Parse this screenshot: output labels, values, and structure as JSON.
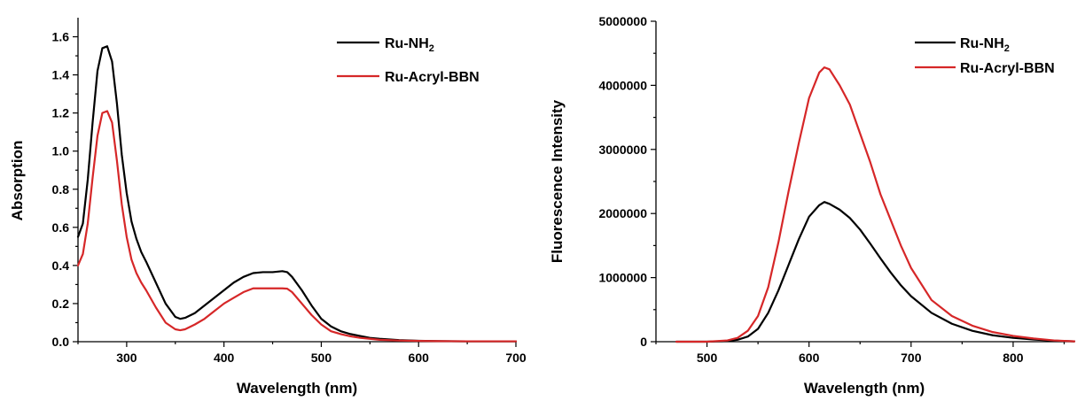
{
  "chart_data": [
    {
      "type": "line",
      "xlabel": "Wavelength (nm)",
      "ylabel": "Absorption",
      "xlim": [
        250,
        700
      ],
      "ylim": [
        0,
        1.7
      ],
      "xticks": [
        300,
        400,
        500,
        600,
        700
      ],
      "yticks": [
        0.0,
        0.2,
        0.4,
        0.6,
        0.8,
        1.0,
        1.2,
        1.4,
        1.6
      ],
      "ytick_labels": [
        "0.0",
        "0.2",
        "0.4",
        "0.6",
        "0.8",
        "1.0",
        "1.2",
        "1.4",
        "1.6"
      ],
      "legend_placement": "top-right",
      "grid": false,
      "series": [
        {
          "name": "Ru-NH",
          "name_subscript": "2",
          "color": "#000000",
          "x": [
            250,
            255,
            260,
            265,
            270,
            275,
            280,
            285,
            290,
            295,
            300,
            305,
            310,
            315,
            320,
            330,
            340,
            350,
            355,
            360,
            370,
            380,
            390,
            400,
            410,
            420,
            430,
            440,
            450,
            460,
            465,
            470,
            480,
            490,
            500,
            510,
            520,
            530,
            540,
            550,
            560,
            580,
            600,
            620,
            650,
            700
          ],
          "y": [
            0.55,
            0.62,
            0.85,
            1.15,
            1.42,
            1.54,
            1.55,
            1.47,
            1.25,
            0.98,
            0.78,
            0.63,
            0.54,
            0.47,
            0.42,
            0.31,
            0.2,
            0.13,
            0.12,
            0.125,
            0.15,
            0.19,
            0.23,
            0.27,
            0.31,
            0.34,
            0.36,
            0.365,
            0.365,
            0.37,
            0.365,
            0.34,
            0.27,
            0.19,
            0.12,
            0.08,
            0.055,
            0.04,
            0.03,
            0.02,
            0.015,
            0.008,
            0.005,
            0.003,
            0.002,
            0.002
          ]
        },
        {
          "name": "Ru-Acryl-BBN",
          "color": "#d62728",
          "x": [
            250,
            255,
            260,
            265,
            270,
            275,
            280,
            285,
            290,
            295,
            300,
            305,
            310,
            315,
            320,
            330,
            340,
            350,
            355,
            360,
            370,
            380,
            390,
            400,
            410,
            420,
            430,
            440,
            450,
            460,
            465,
            470,
            480,
            490,
            500,
            510,
            520,
            530,
            540,
            550,
            560,
            580,
            600,
            620,
            650,
            700
          ],
          "y": [
            0.4,
            0.46,
            0.62,
            0.86,
            1.08,
            1.2,
            1.21,
            1.15,
            0.95,
            0.72,
            0.55,
            0.43,
            0.36,
            0.31,
            0.27,
            0.18,
            0.1,
            0.065,
            0.06,
            0.065,
            0.09,
            0.12,
            0.16,
            0.2,
            0.23,
            0.26,
            0.28,
            0.28,
            0.28,
            0.28,
            0.278,
            0.26,
            0.2,
            0.14,
            0.09,
            0.055,
            0.04,
            0.028,
            0.02,
            0.015,
            0.01,
            0.006,
            0.004,
            0.003,
            0.002,
            0.002
          ]
        }
      ]
    },
    {
      "type": "line",
      "xlabel": "Wavelength (nm)",
      "ylabel": "Fluorescence Intensity",
      "xlim": [
        450,
        860
      ],
      "ylim": [
        0,
        5000000
      ],
      "xticks": [
        500,
        600,
        700,
        800
      ],
      "yticks": [
        0,
        1000000,
        2000000,
        3000000,
        4000000,
        5000000
      ],
      "ytick_labels": [
        "0",
        "1000000",
        "2000000",
        "3000000",
        "4000000",
        "5000000"
      ],
      "legend_placement": "top-right",
      "grid": false,
      "series": [
        {
          "name": "Ru-NH",
          "name_subscript": "2",
          "color": "#000000",
          "x": [
            470,
            500,
            520,
            530,
            540,
            550,
            560,
            570,
            580,
            590,
            600,
            610,
            615,
            620,
            630,
            640,
            650,
            660,
            670,
            680,
            690,
            700,
            720,
            740,
            760,
            780,
            800,
            820,
            840,
            860
          ],
          "y": [
            0,
            0,
            10000,
            30000,
            80000,
            200000,
            450000,
            800000,
            1200000,
            1600000,
            1950000,
            2130000,
            2180000,
            2150000,
            2060000,
            1930000,
            1750000,
            1530000,
            1300000,
            1080000,
            880000,
            710000,
            450000,
            280000,
            170000,
            100000,
            60000,
            35000,
            15000,
            5000
          ]
        },
        {
          "name": "Ru-Acryl-BBN",
          "color": "#d62728",
          "x": [
            470,
            500,
            520,
            530,
            540,
            550,
            560,
            570,
            580,
            590,
            600,
            610,
            615,
            620,
            630,
            640,
            650,
            660,
            670,
            680,
            690,
            700,
            720,
            740,
            760,
            780,
            800,
            820,
            840,
            860
          ],
          "y": [
            0,
            0,
            20000,
            60000,
            170000,
            400000,
            850000,
            1550000,
            2350000,
            3100000,
            3800000,
            4200000,
            4280000,
            4250000,
            4000000,
            3700000,
            3250000,
            2800000,
            2300000,
            1900000,
            1500000,
            1150000,
            650000,
            400000,
            250000,
            150000,
            90000,
            50000,
            20000,
            5000
          ]
        }
      ]
    }
  ]
}
